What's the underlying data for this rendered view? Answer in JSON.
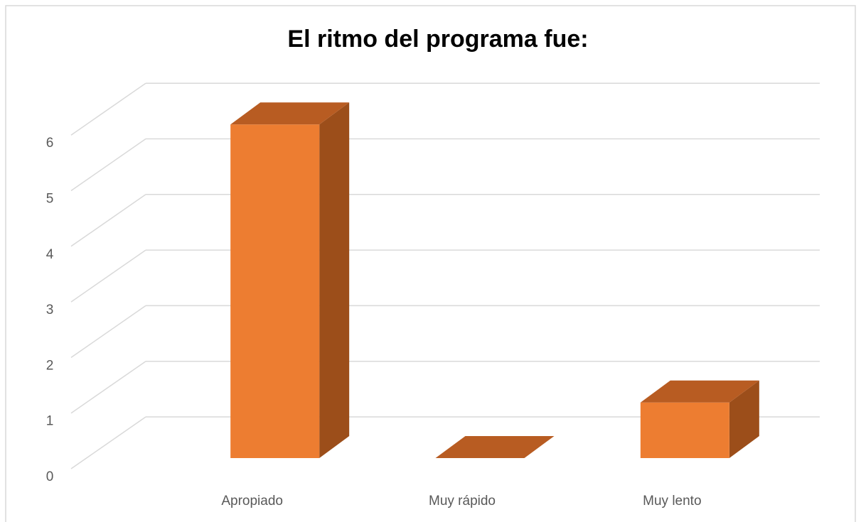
{
  "chart_data": {
    "type": "bar3d",
    "title": "El ritmo del programa fue:",
    "categories": [
      "Apropiado",
      "Muy rápido",
      "Muy lento"
    ],
    "values": [
      6,
      0,
      1
    ],
    "color": "#ED7D31",
    "ylim": [
      0,
      6
    ],
    "yticks": [
      0,
      1,
      2,
      3,
      4,
      5,
      6
    ],
    "grid": true
  }
}
